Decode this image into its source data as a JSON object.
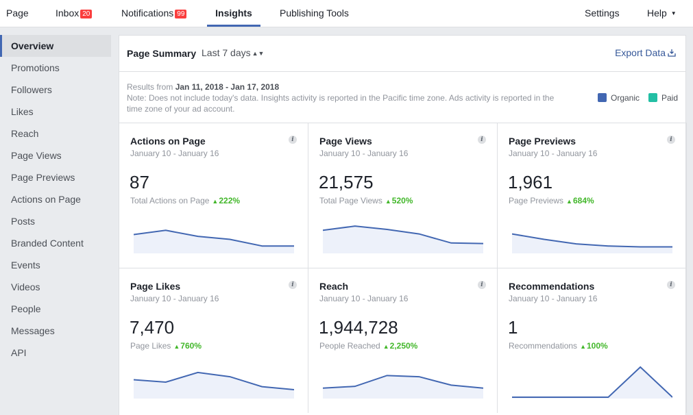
{
  "nav": {
    "items": [
      {
        "label": "Page"
      },
      {
        "label": "Inbox",
        "badge": "20"
      },
      {
        "label": "Notifications",
        "badge": "99"
      },
      {
        "label": "Insights",
        "active": true
      },
      {
        "label": "Publishing Tools"
      }
    ],
    "settings": "Settings",
    "help": "Help"
  },
  "sidebar": {
    "items": [
      "Overview",
      "Promotions",
      "Followers",
      "Likes",
      "Reach",
      "Page Views",
      "Page Previews",
      "Actions on Page",
      "Posts",
      "Branded Content",
      "Events",
      "Videos",
      "People",
      "Messages",
      "API"
    ],
    "active_index": 0
  },
  "summary": {
    "title": "Page Summary",
    "range": "Last 7 days",
    "export": "Export Data",
    "results_prefix": "Results from ",
    "results_dates": "Jan 11, 2018 - Jan 17, 2018",
    "note": "Note: Does not include today's data. Insights activity is reported in the Pacific time zone. Ads activity is reported in the time zone of your ad account."
  },
  "legend": [
    {
      "label": "Organic",
      "color": "#4267b2"
    },
    {
      "label": "Paid",
      "color": "#23bfa4"
    }
  ],
  "colors": {
    "line": "#4267b2",
    "fill": "#edf1fa",
    "positive": "#42b72a"
  },
  "cards": [
    {
      "title": "Actions on Page",
      "dates": "January 10 - January 16",
      "value": "87",
      "sub": "Total Actions on Page",
      "delta": "222%",
      "trend": [
        0.58,
        0.72,
        0.52,
        0.42,
        0.2,
        0.2
      ]
    },
    {
      "title": "Page Views",
      "dates": "January 10 - January 16",
      "value": "21,575",
      "sub": "Total Page Views",
      "delta": "520%",
      "trend": [
        0.72,
        0.86,
        0.75,
        0.6,
        0.3,
        0.28
      ]
    },
    {
      "title": "Page Previews",
      "dates": "January 10 - January 16",
      "value": "1,961",
      "sub": "Page Previews",
      "delta": "684%",
      "trend": [
        0.6,
        0.42,
        0.27,
        0.2,
        0.17,
        0.17
      ]
    },
    {
      "title": "Page Likes",
      "dates": "January 10 - January 16",
      "value": "7,470",
      "sub": "Page Likes",
      "delta": "760%",
      "trend": [
        0.58,
        0.5,
        0.82,
        0.68,
        0.35,
        0.25
      ]
    },
    {
      "title": "Reach",
      "dates": "January 10 - January 16",
      "value": "1,944,728",
      "sub": "People Reached",
      "delta": "2,250%",
      "trend": [
        0.3,
        0.36,
        0.72,
        0.68,
        0.4,
        0.3
      ]
    },
    {
      "title": "Recommendations",
      "dates": "January 10 - January 16",
      "value": "1",
      "sub": "Recommendations",
      "delta": "100%",
      "trend": [
        0,
        0,
        0,
        0,
        1,
        0
      ]
    }
  ]
}
